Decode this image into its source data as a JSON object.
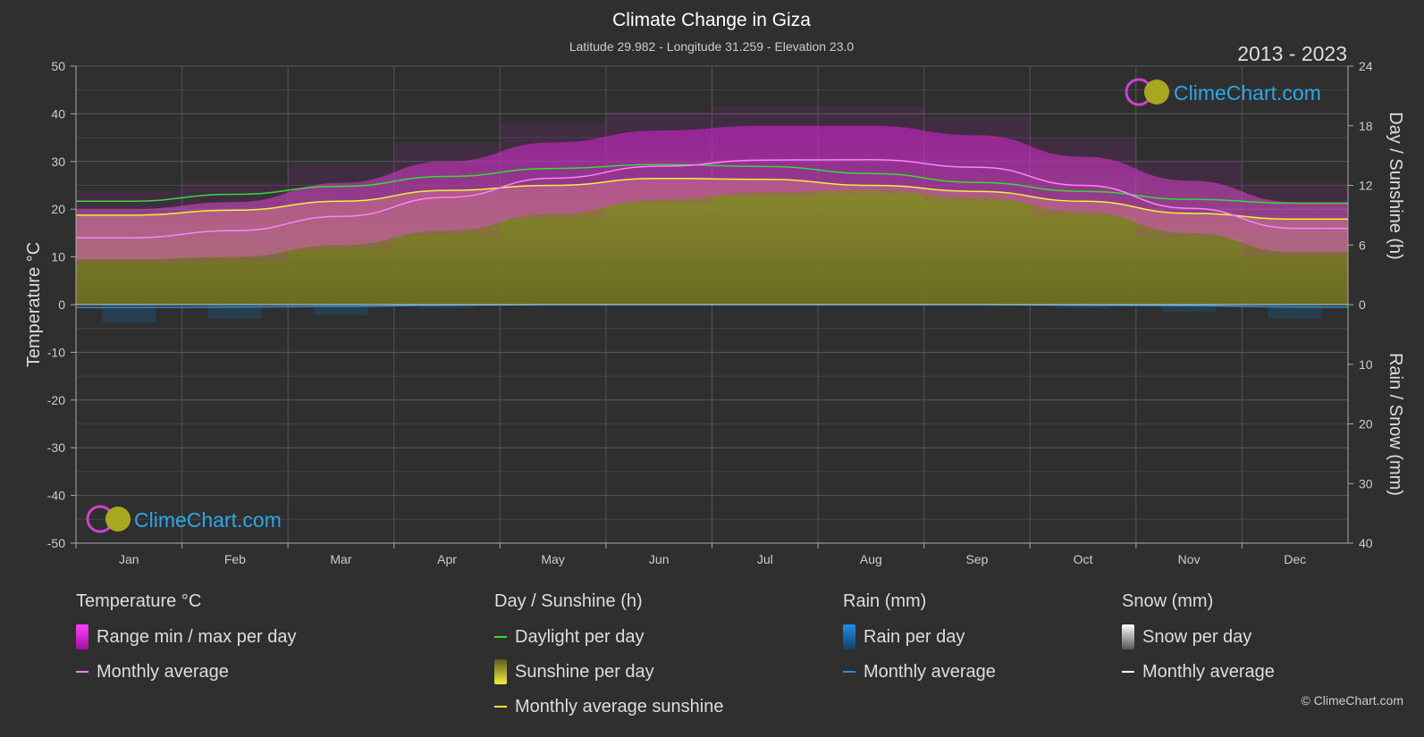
{
  "header": {
    "title": "Climate Change in Giza",
    "subtitle": "Latitude 29.982 - Longitude 31.259 - Elevation 23.0",
    "years": "2013 - 2023"
  },
  "brand": {
    "logo_text": "ClimeChart.com",
    "copyright": "© ClimeChart.com"
  },
  "colors": {
    "background": "#2f2f2f",
    "temp_range": "#c81ec8",
    "temp_avg": "#ff80ff",
    "daylight": "#33dd33",
    "sunshine_fill": "#8a8a2a",
    "sunshine_avg": "#f0f040",
    "rain": "#1e8fe6",
    "snow": "#ffffff"
  },
  "chart_data": {
    "type": "area",
    "title": "Climate Change in Giza",
    "categories": [
      "Jan",
      "Feb",
      "Mar",
      "Apr",
      "May",
      "Jun",
      "Jul",
      "Aug",
      "Sep",
      "Oct",
      "Nov",
      "Dec"
    ],
    "y_left": {
      "label": "Temperature °C",
      "range": [
        -50,
        50
      ],
      "ticks": [
        50,
        40,
        30,
        20,
        10,
        0,
        -10,
        -20,
        -30,
        -40,
        -50
      ]
    },
    "y_right_top": {
      "label": "Day / Sunshine (h)",
      "range": [
        0,
        24
      ],
      "ticks": [
        24,
        18,
        12,
        6,
        0
      ]
    },
    "y_right_bottom": {
      "label": "Rain / Snow (mm)",
      "range": [
        0,
        40
      ],
      "ticks": [
        0,
        10,
        20,
        30,
        40
      ]
    },
    "grid": true,
    "series": [
      {
        "name": "Monthly average",
        "group": "Temperature °C",
        "unit": "°C",
        "values": [
          14.0,
          15.5,
          18.5,
          22.5,
          26.5,
          29.0,
          30.3,
          30.4,
          28.8,
          25.0,
          20.2,
          16.0
        ]
      },
      {
        "name": "Range min / max per day",
        "group": "Temperature °C",
        "unit": "°C",
        "min": [
          9.5,
          10.0,
          12.5,
          15.5,
          19.0,
          22.0,
          23.5,
          24.0,
          22.5,
          19.5,
          15.0,
          11.0
        ],
        "max": [
          20.0,
          21.5,
          25.5,
          30.0,
          34.0,
          36.5,
          37.5,
          37.5,
          35.5,
          31.0,
          26.0,
          21.5
        ]
      },
      {
        "name": "Daylight per day",
        "group": "Day / Sunshine (h)",
        "unit": "h",
        "values": [
          10.4,
          11.1,
          11.9,
          12.9,
          13.7,
          14.1,
          13.9,
          13.2,
          12.3,
          11.4,
          10.6,
          10.2
        ]
      },
      {
        "name": "Monthly average sunshine",
        "group": "Day / Sunshine (h)",
        "unit": "h",
        "values": [
          9.0,
          9.5,
          10.4,
          11.5,
          12.0,
          12.7,
          12.6,
          12.0,
          11.4,
          10.4,
          9.2,
          8.6
        ]
      },
      {
        "name": "Monthly average",
        "group": "Rain (mm)",
        "unit": "mm",
        "values": [
          0.5,
          0.4,
          0.3,
          0.1,
          0.0,
          0.0,
          0.0,
          0.0,
          0.0,
          0.1,
          0.2,
          0.4
        ]
      },
      {
        "name": "Monthly average",
        "group": "Snow (mm)",
        "unit": "mm",
        "values": [
          0,
          0,
          0,
          0,
          0,
          0,
          0,
          0,
          0,
          0,
          0,
          0
        ]
      }
    ]
  },
  "legend": {
    "temperature": {
      "title": "Temperature °C",
      "items": [
        "Range min / max per day",
        "Monthly average"
      ]
    },
    "sun": {
      "title": "Day / Sunshine (h)",
      "items": [
        "Daylight per day",
        "Sunshine per day",
        "Monthly average sunshine"
      ]
    },
    "rain": {
      "title": "Rain (mm)",
      "items": [
        "Rain per day",
        "Monthly average"
      ]
    },
    "snow": {
      "title": "Snow (mm)",
      "items": [
        "Snow per day",
        "Monthly average"
      ]
    }
  }
}
